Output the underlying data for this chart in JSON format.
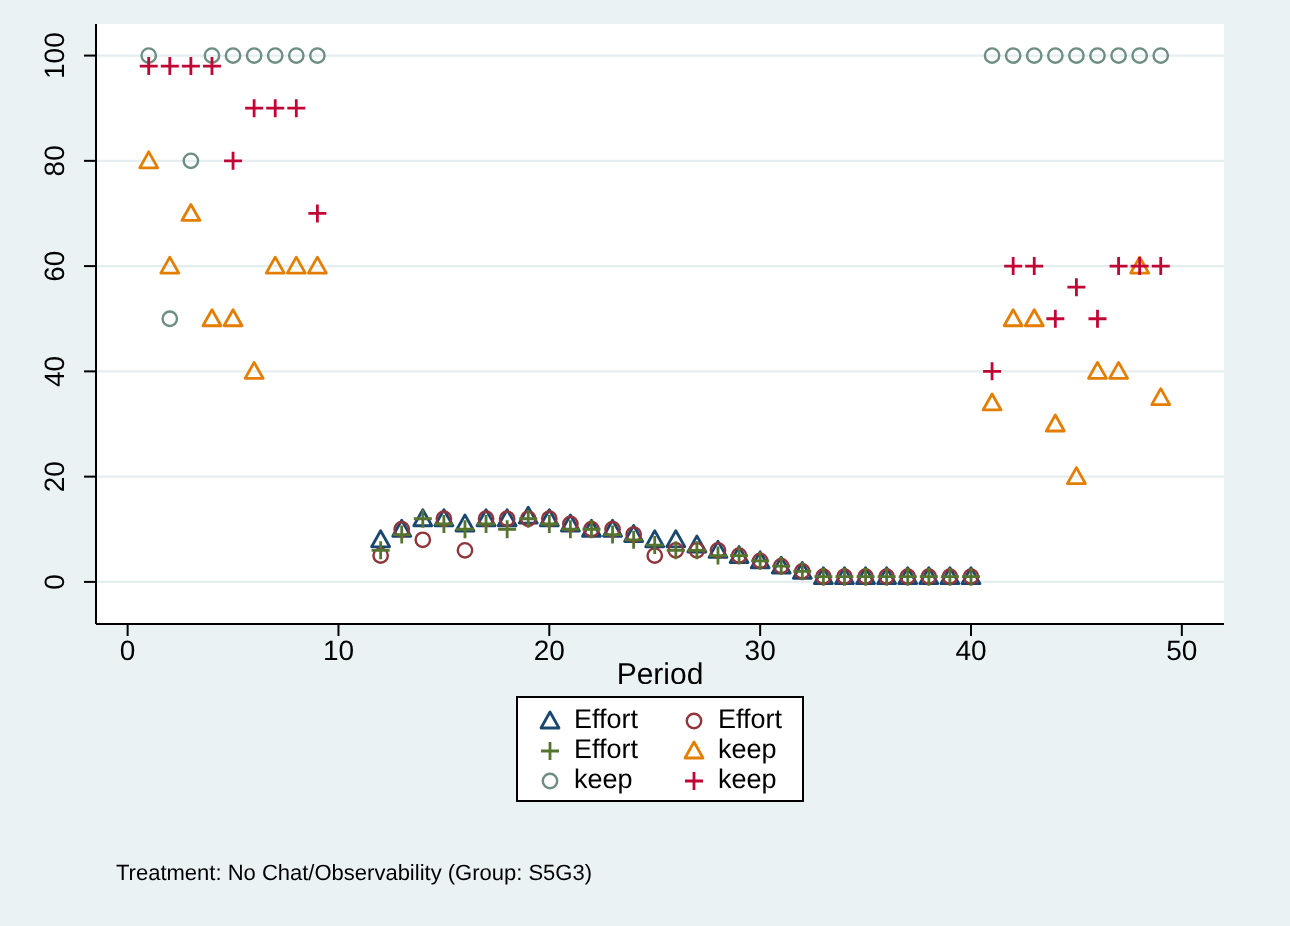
{
  "chart_data": {
    "type": "scatter",
    "xlabel": "Period",
    "xlim": [
      -1.5,
      52
    ],
    "xticks": [
      0,
      10,
      20,
      30,
      40,
      50
    ],
    "ylim": [
      -8,
      106
    ],
    "yticks": [
      0,
      20,
      40,
      60,
      80,
      100
    ],
    "grid": "y",
    "legend": "bottom",
    "annotations": [
      "Treatment: No Chat/Observability (Group: S5G3)"
    ],
    "series": [
      {
        "name": "Effort",
        "color": "#1a476f",
        "marker": "triangle",
        "x": [
          12,
          13,
          14,
          15,
          16,
          17,
          18,
          19,
          20,
          21,
          22,
          23,
          24,
          25,
          26,
          27,
          28,
          29,
          30,
          31,
          32,
          33,
          34,
          35,
          36,
          37,
          38,
          39,
          40
        ],
        "values": [
          8,
          10,
          12,
          12,
          11,
          12,
          12,
          12.5,
          12,
          11,
          10,
          10,
          9,
          8,
          8,
          7,
          6,
          5,
          4,
          3,
          2,
          1,
          1,
          1,
          1,
          1,
          1,
          1,
          1
        ]
      },
      {
        "name": "Effort",
        "color": "#90353b",
        "marker": "circle",
        "x": [
          12,
          13,
          14,
          15,
          16,
          17,
          18,
          19,
          20,
          21,
          22,
          23,
          24,
          25,
          26,
          27,
          28,
          29,
          30,
          31,
          32,
          33,
          34,
          35,
          36,
          37,
          38,
          39,
          40
        ],
        "values": [
          5,
          10,
          8,
          12,
          6,
          12,
          12,
          12,
          12,
          11,
          10,
          10,
          9,
          5,
          6,
          6,
          6,
          5,
          4,
          3,
          2,
          1,
          1,
          1,
          1,
          1,
          1,
          1,
          1
        ]
      },
      {
        "name": "Effort",
        "color": "#55752f",
        "marker": "cross",
        "x": [
          12,
          13,
          14,
          15,
          16,
          17,
          18,
          19,
          20,
          21,
          22,
          23,
          24,
          25,
          26,
          27,
          28,
          29,
          30,
          31,
          32,
          33,
          34,
          35,
          36,
          37,
          38,
          39,
          40
        ],
        "values": [
          6,
          9,
          12,
          11,
          10,
          11,
          10,
          12,
          11,
          10,
          10,
          9,
          8,
          7,
          6,
          6,
          5,
          5,
          4,
          3,
          2,
          1,
          1,
          1,
          1,
          1,
          1,
          1,
          1
        ]
      },
      {
        "name": "keep",
        "color": "#e37e00",
        "marker": "triangle",
        "x": [
          1,
          2,
          3,
          4,
          5,
          6,
          7,
          8,
          9,
          41,
          42,
          43,
          44,
          45,
          46,
          47,
          48,
          49
        ],
        "values": [
          80,
          60,
          70,
          50,
          50,
          40,
          60,
          60,
          60,
          34,
          50,
          50,
          30,
          20,
          40,
          40,
          60,
          35
        ]
      },
      {
        "name": "keep",
        "color": "#6e8e84",
        "marker": "circle",
        "x": [
          1,
          2,
          3,
          4,
          5,
          6,
          7,
          8,
          9,
          41,
          42,
          43,
          44,
          45,
          46,
          47,
          48,
          49
        ],
        "values": [
          100,
          50,
          80,
          100,
          100,
          100,
          100,
          100,
          100,
          100,
          100,
          100,
          100,
          100,
          100,
          100,
          100,
          100
        ]
      },
      {
        "name": "keep",
        "color": "#c10534",
        "marker": "cross",
        "x": [
          1,
          2,
          3,
          4,
          5,
          6,
          7,
          8,
          9,
          41,
          42,
          43,
          44,
          45,
          46,
          47,
          48,
          49
        ],
        "values": [
          98,
          98,
          98,
          98,
          80,
          90,
          90,
          90,
          70,
          40,
          60,
          60,
          50,
          56,
          50,
          60,
          60,
          60
        ]
      }
    ]
  }
}
